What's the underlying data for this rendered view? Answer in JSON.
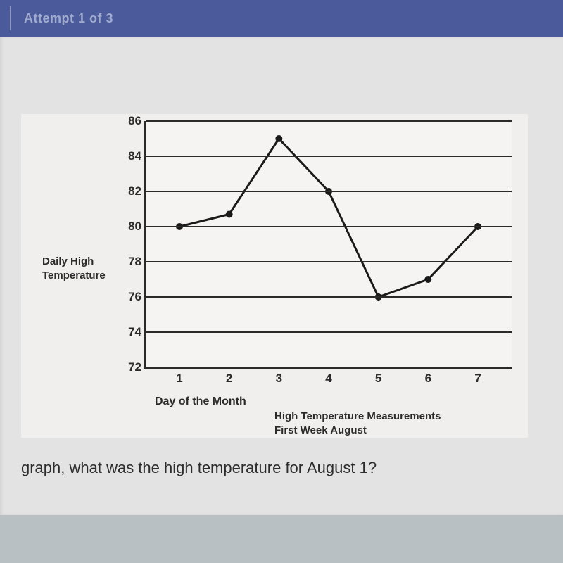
{
  "topbar": {
    "attempt_text": "Attempt 1 of 3"
  },
  "chart": {
    "type": "line",
    "y_axis_title": "Daily High\nTemperature",
    "x_axis_title": "Day of the Month",
    "caption": "High Temperature Measurements\nFirst Week August",
    "ylim": [
      72,
      86
    ],
    "ytick_step": 2,
    "y_ticks": [
      72,
      74,
      76,
      78,
      80,
      82,
      84,
      86
    ],
    "x_ticks": [
      1,
      2,
      3,
      4,
      5,
      6,
      7
    ],
    "values": [
      80,
      80.7,
      85,
      82,
      76,
      77,
      80
    ],
    "line_color": "#1a1a1a",
    "line_width": 3,
    "marker_color": "#1a1a1a",
    "marker_radius": 5,
    "grid_color": "#2a2a2a",
    "background_color": "#f6f4f2",
    "card_background": "#f1efee",
    "label_fontsize": 17,
    "axis_title_fontsize": 16
  },
  "question": {
    "text": "graph, what was the high temperature for August 1?"
  },
  "page_background": "#b8c0c4",
  "panel_background": "#e2e3e2",
  "topbar_background": "#4a5a9a"
}
